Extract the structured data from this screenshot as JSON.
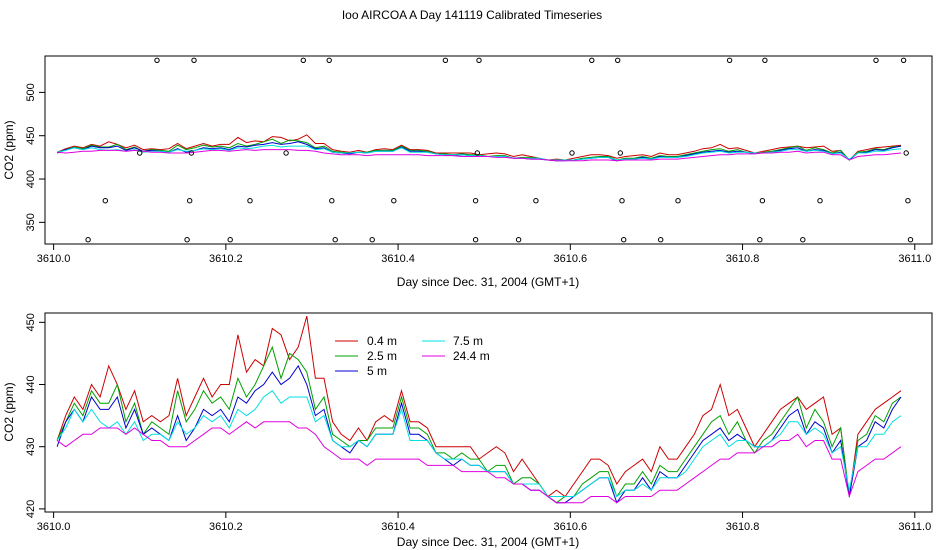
{
  "page_title": "Ioo AIRCOA A  Day 141119  Calibrated Timeseries",
  "colors": {
    "0.4 m": "#cc0000",
    "2.5 m": "#00a000",
    "5 m": "#0000cc",
    "7.5 m": "#00e0e0",
    "24.4 m": "#e000e0"
  },
  "chart_data": [
    {
      "type": "line",
      "xlabel": "Day since Dec. 31, 2004 (GMT+1)",
      "ylabel": "CO2 (ppm)",
      "xlim": [
        3609.99,
        3611.02
      ],
      "ylim": [
        325,
        542
      ],
      "xticks": [
        3610.0,
        3610.2,
        3610.4,
        3610.6,
        3610.8,
        3611.0
      ],
      "xtick_labels": [
        "3610.0",
        "3610.2",
        "3610.4",
        "3610.6",
        "3610.8",
        "3611.0"
      ],
      "yticks": [
        350,
        400,
        450,
        500
      ],
      "ytick_labels": [
        "350",
        "400",
        "450",
        "500"
      ],
      "series": [
        {
          "name": "0.4 m",
          "values_key": "s04"
        },
        {
          "name": "2.5 m",
          "values_key": "s25"
        },
        {
          "name": "5 m",
          "values_key": "s5"
        },
        {
          "name": "7.5 m",
          "values_key": "s75"
        },
        {
          "name": "24.4 m",
          "values_key": "s244"
        }
      ],
      "points": [
        [
          3610.04,
          330
        ],
        [
          3610.06,
          375
        ],
        [
          3610.1,
          430
        ],
        [
          3610.12,
          537
        ],
        [
          3610.155,
          330
        ],
        [
          3610.158,
          375
        ],
        [
          3610.16,
          430
        ],
        [
          3610.163,
          537
        ],
        [
          3610.205,
          330
        ],
        [
          3610.228,
          375
        ],
        [
          3610.27,
          430
        ],
        [
          3610.29,
          537
        ],
        [
          3610.32,
          537
        ],
        [
          3610.323,
          375
        ],
        [
          3610.327,
          330
        ],
        [
          3610.37,
          330
        ],
        [
          3610.395,
          375
        ],
        [
          3610.455,
          537
        ],
        [
          3610.49,
          330
        ],
        [
          3610.49,
          375
        ],
        [
          3610.492,
          430
        ],
        [
          3610.494,
          537
        ],
        [
          3610.54,
          330
        ],
        [
          3610.56,
          375
        ],
        [
          3610.602,
          430
        ],
        [
          3610.625,
          537
        ],
        [
          3610.655,
          537
        ],
        [
          3610.658,
          430
        ],
        [
          3610.66,
          375
        ],
        [
          3610.662,
          330
        ],
        [
          3610.705,
          330
        ],
        [
          3610.725,
          375
        ],
        [
          3610.785,
          537
        ],
        [
          3610.82,
          330
        ],
        [
          3610.823,
          375
        ],
        [
          3610.826,
          537
        ],
        [
          3610.87,
          330
        ],
        [
          3610.89,
          375
        ],
        [
          3610.955,
          537
        ],
        [
          3610.987,
          537
        ],
        [
          3610.99,
          430
        ],
        [
          3610.992,
          375
        ],
        [
          3610.995,
          330
        ]
      ]
    },
    {
      "type": "line",
      "xlabel": "Day since Dec. 31, 2004 (GMT+1)",
      "ylabel": "CO2 (ppm)",
      "xlim": [
        3609.99,
        3611.02
      ],
      "ylim": [
        419.5,
        451.5
      ],
      "xticks": [
        3610.0,
        3610.2,
        3610.4,
        3610.6,
        3610.8,
        3611.0
      ],
      "xtick_labels": [
        "3610.0",
        "3610.2",
        "3610.4",
        "3610.6",
        "3610.8",
        "3611.0"
      ],
      "yticks": [
        420,
        430,
        440,
        450
      ],
      "ytick_labels": [
        "420",
        "430",
        "440",
        "450"
      ],
      "legend": {
        "position": "top-center",
        "entries": [
          "0.4 m",
          "2.5 m",
          "5 m",
          "7.5 m",
          "24.4 m"
        ]
      },
      "series": [
        {
          "name": "0.4 m",
          "values_key": "s04"
        },
        {
          "name": "2.5 m",
          "values_key": "s25"
        },
        {
          "name": "5 m",
          "values_key": "s5"
        },
        {
          "name": "7.5 m",
          "values_key": "s75"
        },
        {
          "name": "24.4 m",
          "values_key": "s244"
        }
      ]
    }
  ],
  "series_values": {
    "x": [
      3610.004,
      3610.014,
      3610.024,
      3610.034,
      3610.044,
      3610.054,
      3610.064,
      3610.074,
      3610.084,
      3610.094,
      3610.104,
      3610.114,
      3610.124,
      3610.134,
      3610.144,
      3610.154,
      3610.164,
      3610.174,
      3610.184,
      3610.194,
      3610.204,
      3610.214,
      3610.224,
      3610.234,
      3610.244,
      3610.254,
      3610.264,
      3610.274,
      3610.284,
      3610.294,
      3610.304,
      3610.314,
      3610.324,
      3610.334,
      3610.344,
      3610.354,
      3610.364,
      3610.374,
      3610.384,
      3610.394,
      3610.404,
      3610.414,
      3610.424,
      3610.434,
      3610.444,
      3610.454,
      3610.464,
      3610.474,
      3610.484,
      3610.494,
      3610.504,
      3610.514,
      3610.524,
      3610.534,
      3610.544,
      3610.554,
      3610.564,
      3610.574,
      3610.584,
      3610.594,
      3610.604,
      3610.614,
      3610.624,
      3610.634,
      3610.644,
      3610.654,
      3610.664,
      3610.674,
      3610.684,
      3610.694,
      3610.704,
      3610.714,
      3610.724,
      3610.734,
      3610.744,
      3610.754,
      3610.764,
      3610.774,
      3610.784,
      3610.794,
      3610.804,
      3610.814,
      3610.824,
      3610.834,
      3610.844,
      3610.854,
      3610.864,
      3610.874,
      3610.884,
      3610.894,
      3610.904,
      3610.914,
      3610.924,
      3610.934,
      3610.944,
      3610.954,
      3610.964,
      3610.974,
      3610.984
    ],
    "s04": [
      431,
      435,
      438,
      436,
      440,
      438,
      443,
      440,
      436,
      439,
      434,
      435,
      434,
      435,
      441,
      435,
      438,
      441,
      438,
      440,
      440,
      448,
      442,
      444,
      443,
      449,
      448,
      444,
      446,
      451,
      441,
      441,
      434,
      432,
      431,
      433,
      431,
      434,
      435,
      434,
      439,
      434,
      434,
      433,
      430,
      430,
      430,
      430,
      430,
      428,
      429,
      430,
      429,
      426,
      428,
      426,
      424,
      422,
      423,
      422,
      424,
      426,
      428,
      428,
      427,
      424,
      426,
      427,
      428,
      426,
      430,
      428,
      428,
      430,
      432,
      435,
      436,
      440,
      435,
      436,
      433,
      430,
      432,
      434,
      436,
      437,
      438,
      436,
      437,
      438,
      432,
      433,
      422,
      432,
      434,
      436,
      437,
      438,
      439
    ],
    "s25": [
      431,
      434,
      437,
      435,
      439,
      437,
      437,
      440,
      434,
      437,
      432,
      434,
      433,
      432,
      439,
      434,
      436,
      439,
      437,
      438,
      436,
      441,
      438,
      440,
      443,
      446,
      441,
      445,
      444,
      442,
      436,
      438,
      432,
      431,
      430,
      431,
      431,
      433,
      433,
      433,
      438,
      433,
      433,
      432,
      429,
      429,
      428,
      429,
      428,
      428,
      426,
      427,
      427,
      424,
      425,
      425,
      424,
      422,
      421,
      422,
      422,
      424,
      425,
      426,
      426,
      422,
      424,
      424,
      426,
      424,
      427,
      426,
      426,
      428,
      430,
      432,
      434,
      435,
      432,
      434,
      431,
      429,
      431,
      432,
      434,
      436,
      438,
      433,
      436,
      434,
      430,
      433,
      422,
      431,
      432,
      435,
      434,
      437,
      438
    ],
    "s5": [
      430,
      434,
      436,
      434,
      438,
      436,
      436,
      438,
      433,
      436,
      432,
      433,
      432,
      431,
      435,
      431,
      433,
      436,
      435,
      436,
      434,
      438,
      437,
      439,
      440,
      442,
      440,
      441,
      443,
      440,
      435,
      436,
      431,
      430,
      429,
      431,
      430,
      432,
      432,
      432,
      437,
      432,
      432,
      431,
      429,
      428,
      427,
      428,
      427,
      427,
      426,
      426,
      426,
      424,
      424,
      423,
      423,
      422,
      421,
      421,
      422,
      423,
      424,
      425,
      425,
      421,
      423,
      423,
      425,
      423,
      426,
      425,
      425,
      427,
      429,
      431,
      432,
      433,
      431,
      432,
      431,
      430,
      430,
      431,
      433,
      435,
      436,
      432,
      434,
      433,
      429,
      431,
      422,
      430,
      431,
      434,
      433,
      436,
      438
    ],
    "s75": [
      431,
      433,
      436,
      434,
      436,
      434,
      433,
      434,
      432,
      434,
      431,
      432,
      432,
      431,
      434,
      432,
      433,
      435,
      434,
      435,
      433,
      436,
      435,
      436,
      438,
      439,
      437,
      438,
      438,
      438,
      434,
      435,
      431,
      430,
      430,
      431,
      430,
      432,
      432,
      432,
      436,
      431,
      431,
      431,
      429,
      428,
      428,
      428,
      427,
      427,
      426,
      426,
      426,
      424,
      424,
      424,
      424,
      422,
      422,
      422,
      422,
      423,
      424,
      425,
      425,
      422,
      423,
      423,
      424,
      423,
      425,
      425,
      425,
      426,
      428,
      430,
      431,
      432,
      430,
      431,
      431,
      430,
      430,
      431,
      432,
      434,
      434,
      432,
      433,
      432,
      429,
      430,
      423,
      430,
      430,
      432,
      432,
      434,
      435
    ],
    "s244": [
      431,
      430,
      431,
      432,
      432,
      433,
      433,
      433,
      432,
      433,
      432,
      431,
      431,
      430,
      430,
      430,
      431,
      432,
      433,
      433,
      432,
      433,
      434,
      433,
      434,
      434,
      434,
      434,
      433,
      433,
      432,
      430,
      429,
      428,
      428,
      428,
      427,
      428,
      428,
      428,
      428,
      428,
      428,
      427,
      427,
      427,
      427,
      426,
      426,
      426,
      426,
      425,
      425,
      424,
      424,
      423,
      423,
      422,
      421,
      421,
      421,
      421,
      422,
      422,
      422,
      421,
      422,
      422,
      422,
      422,
      423,
      423,
      423,
      424,
      425,
      426,
      427,
      428,
      428,
      429,
      429,
      429,
      430,
      430,
      431,
      431,
      432,
      430,
      431,
      431,
      428,
      428,
      422,
      426,
      427,
      428,
      428,
      429,
      430
    ]
  }
}
